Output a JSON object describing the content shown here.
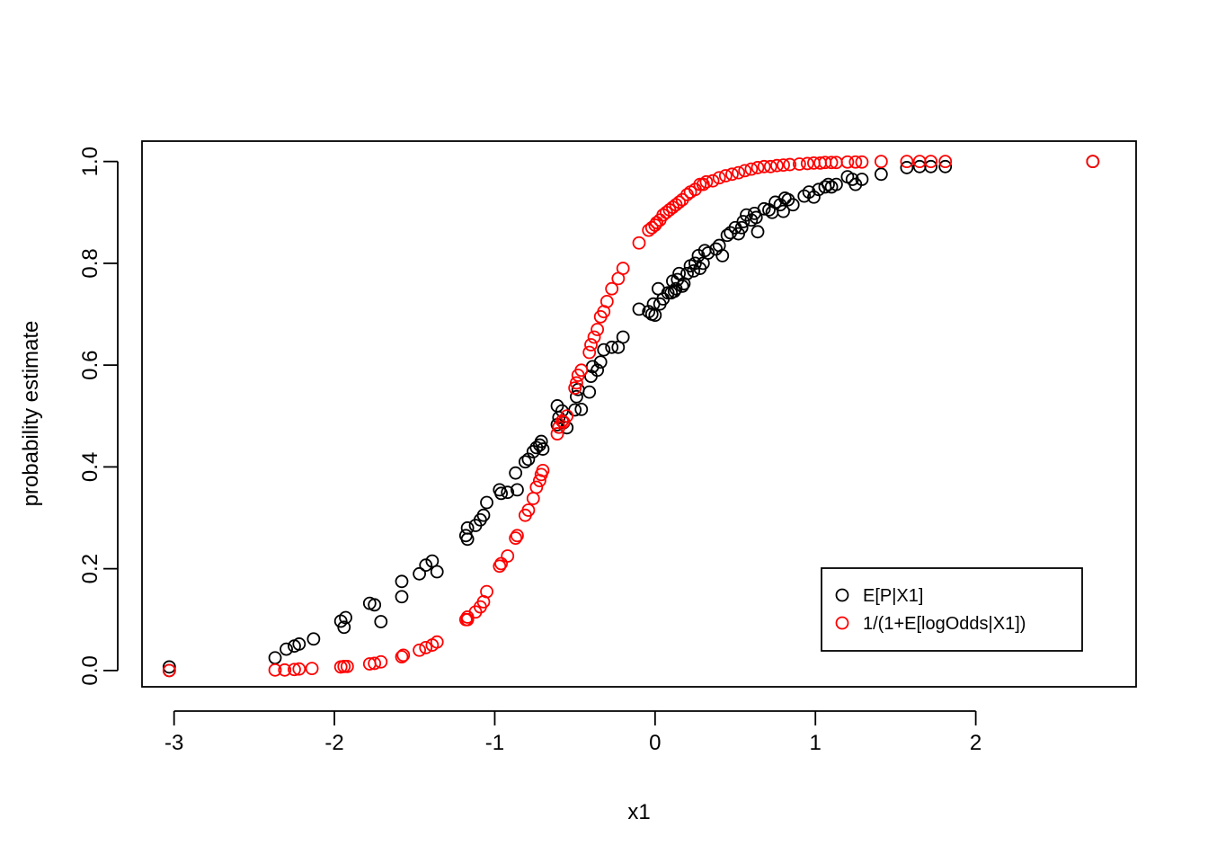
{
  "chart_data": {
    "type": "scatter",
    "xlabel": "x1",
    "ylabel": "probability estimate",
    "xlim": [
      -3.2,
      3.0
    ],
    "ylim": [
      -0.032,
      1.04
    ],
    "x_ticks": [
      "-3",
      "-2",
      "-1",
      "0",
      "1",
      "2"
    ],
    "y_ticks": [
      "0.0",
      "0.2",
      "0.4",
      "0.6",
      "0.8",
      "1.0"
    ],
    "grid": false,
    "legend_position": "bottom-right",
    "series": [
      {
        "name": "E[P|X1]",
        "color": "#000000",
        "marker": "open-circle",
        "points": [
          [
            -3.03,
            0.007
          ],
          [
            -3.03,
            0.0
          ],
          [
            -2.37,
            0.025
          ],
          [
            -2.3,
            0.042
          ],
          [
            -2.25,
            0.048
          ],
          [
            -2.22,
            0.052
          ],
          [
            -2.13,
            0.062
          ],
          [
            -1.96,
            0.097
          ],
          [
            -1.94,
            0.085
          ],
          [
            -1.93,
            0.104
          ],
          [
            -1.78,
            0.132
          ],
          [
            -1.75,
            0.129
          ],
          [
            -1.71,
            0.096
          ],
          [
            -1.58,
            0.175
          ],
          [
            -1.58,
            0.145
          ],
          [
            -1.47,
            0.19
          ],
          [
            -1.43,
            0.207
          ],
          [
            -1.39,
            0.215
          ],
          [
            -1.36,
            0.194
          ],
          [
            -1.18,
            0.265
          ],
          [
            -1.17,
            0.28
          ],
          [
            -1.17,
            0.258
          ],
          [
            -1.12,
            0.285
          ],
          [
            -1.09,
            0.296
          ],
          [
            -1.07,
            0.305
          ],
          [
            -1.05,
            0.33
          ],
          [
            -0.97,
            0.355
          ],
          [
            -0.96,
            0.348
          ],
          [
            -0.92,
            0.35
          ],
          [
            -0.87,
            0.388
          ],
          [
            -0.86,
            0.355
          ],
          [
            -0.81,
            0.41
          ],
          [
            -0.79,
            0.415
          ],
          [
            -0.76,
            0.43
          ],
          [
            -0.74,
            0.438
          ],
          [
            -0.72,
            0.443
          ],
          [
            -0.71,
            0.45
          ],
          [
            -0.7,
            0.435
          ],
          [
            -0.61,
            0.52
          ],
          [
            -0.61,
            0.483
          ],
          [
            -0.6,
            0.497
          ],
          [
            -0.58,
            0.51
          ],
          [
            -0.57,
            0.487
          ],
          [
            -0.55,
            0.477
          ],
          [
            -0.5,
            0.512
          ],
          [
            -0.49,
            0.538
          ],
          [
            -0.48,
            0.552
          ],
          [
            -0.46,
            0.513
          ],
          [
            -0.41,
            0.547
          ],
          [
            -0.4,
            0.578
          ],
          [
            -0.39,
            0.597
          ],
          [
            -0.36,
            0.59
          ],
          [
            -0.34,
            0.606
          ],
          [
            -0.32,
            0.63
          ],
          [
            -0.27,
            0.635
          ],
          [
            -0.23,
            0.635
          ],
          [
            -0.2,
            0.655
          ],
          [
            -0.1,
            0.71
          ],
          [
            -0.04,
            0.705
          ],
          [
            -0.02,
            0.7
          ],
          [
            -0.01,
            0.72
          ],
          [
            0.0,
            0.698
          ],
          [
            0.02,
            0.75
          ],
          [
            0.03,
            0.72
          ],
          [
            0.05,
            0.73
          ],
          [
            0.08,
            0.742
          ],
          [
            0.1,
            0.742
          ],
          [
            0.11,
            0.765
          ],
          [
            0.12,
            0.745
          ],
          [
            0.13,
            0.75
          ],
          [
            0.14,
            0.768
          ],
          [
            0.15,
            0.78
          ],
          [
            0.17,
            0.755
          ],
          [
            0.18,
            0.76
          ],
          [
            0.2,
            0.78
          ],
          [
            0.22,
            0.795
          ],
          [
            0.24,
            0.785
          ],
          [
            0.25,
            0.8
          ],
          [
            0.27,
            0.815
          ],
          [
            0.28,
            0.79
          ],
          [
            0.3,
            0.8
          ],
          [
            0.31,
            0.825
          ],
          [
            0.33,
            0.82
          ],
          [
            0.38,
            0.828
          ],
          [
            0.4,
            0.835
          ],
          [
            0.42,
            0.815
          ],
          [
            0.45,
            0.855
          ],
          [
            0.47,
            0.86
          ],
          [
            0.5,
            0.87
          ],
          [
            0.52,
            0.858
          ],
          [
            0.54,
            0.87
          ],
          [
            0.55,
            0.882
          ],
          [
            0.57,
            0.895
          ],
          [
            0.6,
            0.885
          ],
          [
            0.62,
            0.898
          ],
          [
            0.63,
            0.89
          ],
          [
            0.64,
            0.862
          ],
          [
            0.68,
            0.907
          ],
          [
            0.71,
            0.905
          ],
          [
            0.73,
            0.9
          ],
          [
            0.75,
            0.92
          ],
          [
            0.78,
            0.915
          ],
          [
            0.8,
            0.902
          ],
          [
            0.81,
            0.928
          ],
          [
            0.83,
            0.925
          ],
          [
            0.86,
            0.915
          ],
          [
            0.93,
            0.932
          ],
          [
            0.96,
            0.94
          ],
          [
            0.99,
            0.93
          ],
          [
            1.02,
            0.945
          ],
          [
            1.06,
            0.95
          ],
          [
            1.08,
            0.955
          ],
          [
            1.1,
            0.95
          ],
          [
            1.13,
            0.955
          ],
          [
            1.2,
            0.97
          ],
          [
            1.23,
            0.965
          ],
          [
            1.25,
            0.955
          ],
          [
            1.29,
            0.965
          ],
          [
            1.41,
            0.975
          ],
          [
            1.57,
            0.988
          ],
          [
            1.65,
            0.99
          ],
          [
            1.72,
            0.99
          ],
          [
            1.81,
            0.99
          ],
          [
            2.73,
            1.0
          ]
        ]
      },
      {
        "name": "1/(1+E[logOdds|X1])",
        "color": "#ff0000",
        "marker": "open-circle",
        "points": [
          [
            -3.03,
            0.0
          ],
          [
            -2.37,
            0.001
          ],
          [
            -2.31,
            0.001
          ],
          [
            -2.25,
            0.002
          ],
          [
            -2.22,
            0.003
          ],
          [
            -2.14,
            0.004
          ],
          [
            -1.96,
            0.007
          ],
          [
            -1.94,
            0.008
          ],
          [
            -1.92,
            0.008
          ],
          [
            -1.78,
            0.013
          ],
          [
            -1.75,
            0.014
          ],
          [
            -1.71,
            0.017
          ],
          [
            -1.58,
            0.027
          ],
          [
            -1.57,
            0.03
          ],
          [
            -1.47,
            0.04
          ],
          [
            -1.43,
            0.045
          ],
          [
            -1.39,
            0.05
          ],
          [
            -1.36,
            0.056
          ],
          [
            -1.18,
            0.1
          ],
          [
            -1.17,
            0.105
          ],
          [
            -1.17,
            0.1
          ],
          [
            -1.12,
            0.115
          ],
          [
            -1.09,
            0.125
          ],
          [
            -1.07,
            0.135
          ],
          [
            -1.05,
            0.155
          ],
          [
            -0.97,
            0.205
          ],
          [
            -0.96,
            0.21
          ],
          [
            -0.92,
            0.225
          ],
          [
            -0.87,
            0.26
          ],
          [
            -0.86,
            0.265
          ],
          [
            -0.81,
            0.305
          ],
          [
            -0.79,
            0.315
          ],
          [
            -0.76,
            0.338
          ],
          [
            -0.74,
            0.36
          ],
          [
            -0.72,
            0.373
          ],
          [
            -0.71,
            0.385
          ],
          [
            -0.7,
            0.393
          ],
          [
            -0.61,
            0.465
          ],
          [
            -0.6,
            0.478
          ],
          [
            -0.58,
            0.49
          ],
          [
            -0.57,
            0.488
          ],
          [
            -0.55,
            0.5
          ],
          [
            -0.5,
            0.555
          ],
          [
            -0.49,
            0.565
          ],
          [
            -0.48,
            0.58
          ],
          [
            -0.46,
            0.59
          ],
          [
            -0.41,
            0.625
          ],
          [
            -0.4,
            0.64
          ],
          [
            -0.38,
            0.655
          ],
          [
            -0.36,
            0.67
          ],
          [
            -0.34,
            0.695
          ],
          [
            -0.32,
            0.705
          ],
          [
            -0.3,
            0.725
          ],
          [
            -0.27,
            0.75
          ],
          [
            -0.23,
            0.77
          ],
          [
            -0.2,
            0.79
          ],
          [
            -0.1,
            0.84
          ],
          [
            -0.04,
            0.865
          ],
          [
            -0.02,
            0.87
          ],
          [
            0.0,
            0.875
          ],
          [
            0.01,
            0.88
          ],
          [
            0.03,
            0.885
          ],
          [
            0.05,
            0.895
          ],
          [
            0.07,
            0.9
          ],
          [
            0.09,
            0.905
          ],
          [
            0.11,
            0.91
          ],
          [
            0.13,
            0.915
          ],
          [
            0.15,
            0.92
          ],
          [
            0.17,
            0.925
          ],
          [
            0.2,
            0.935
          ],
          [
            0.22,
            0.94
          ],
          [
            0.25,
            0.945
          ],
          [
            0.28,
            0.955
          ],
          [
            0.3,
            0.955
          ],
          [
            0.32,
            0.96
          ],
          [
            0.36,
            0.962
          ],
          [
            0.4,
            0.968
          ],
          [
            0.44,
            0.972
          ],
          [
            0.48,
            0.975
          ],
          [
            0.52,
            0.978
          ],
          [
            0.56,
            0.982
          ],
          [
            0.6,
            0.985
          ],
          [
            0.64,
            0.988
          ],
          [
            0.68,
            0.99
          ],
          [
            0.72,
            0.99
          ],
          [
            0.76,
            0.992
          ],
          [
            0.8,
            0.993
          ],
          [
            0.84,
            0.994
          ],
          [
            0.9,
            0.995
          ],
          [
            0.95,
            0.996
          ],
          [
            0.99,
            0.997
          ],
          [
            1.03,
            0.997
          ],
          [
            1.06,
            0.998
          ],
          [
            1.1,
            0.998
          ],
          [
            1.13,
            0.998
          ],
          [
            1.2,
            0.999
          ],
          [
            1.25,
            0.999
          ],
          [
            1.29,
            0.999
          ],
          [
            1.41,
            1.0
          ],
          [
            1.57,
            1.0
          ],
          [
            1.65,
            1.0
          ],
          [
            1.72,
            1.0
          ],
          [
            1.81,
            1.0
          ],
          [
            2.73,
            1.0
          ]
        ]
      }
    ]
  }
}
